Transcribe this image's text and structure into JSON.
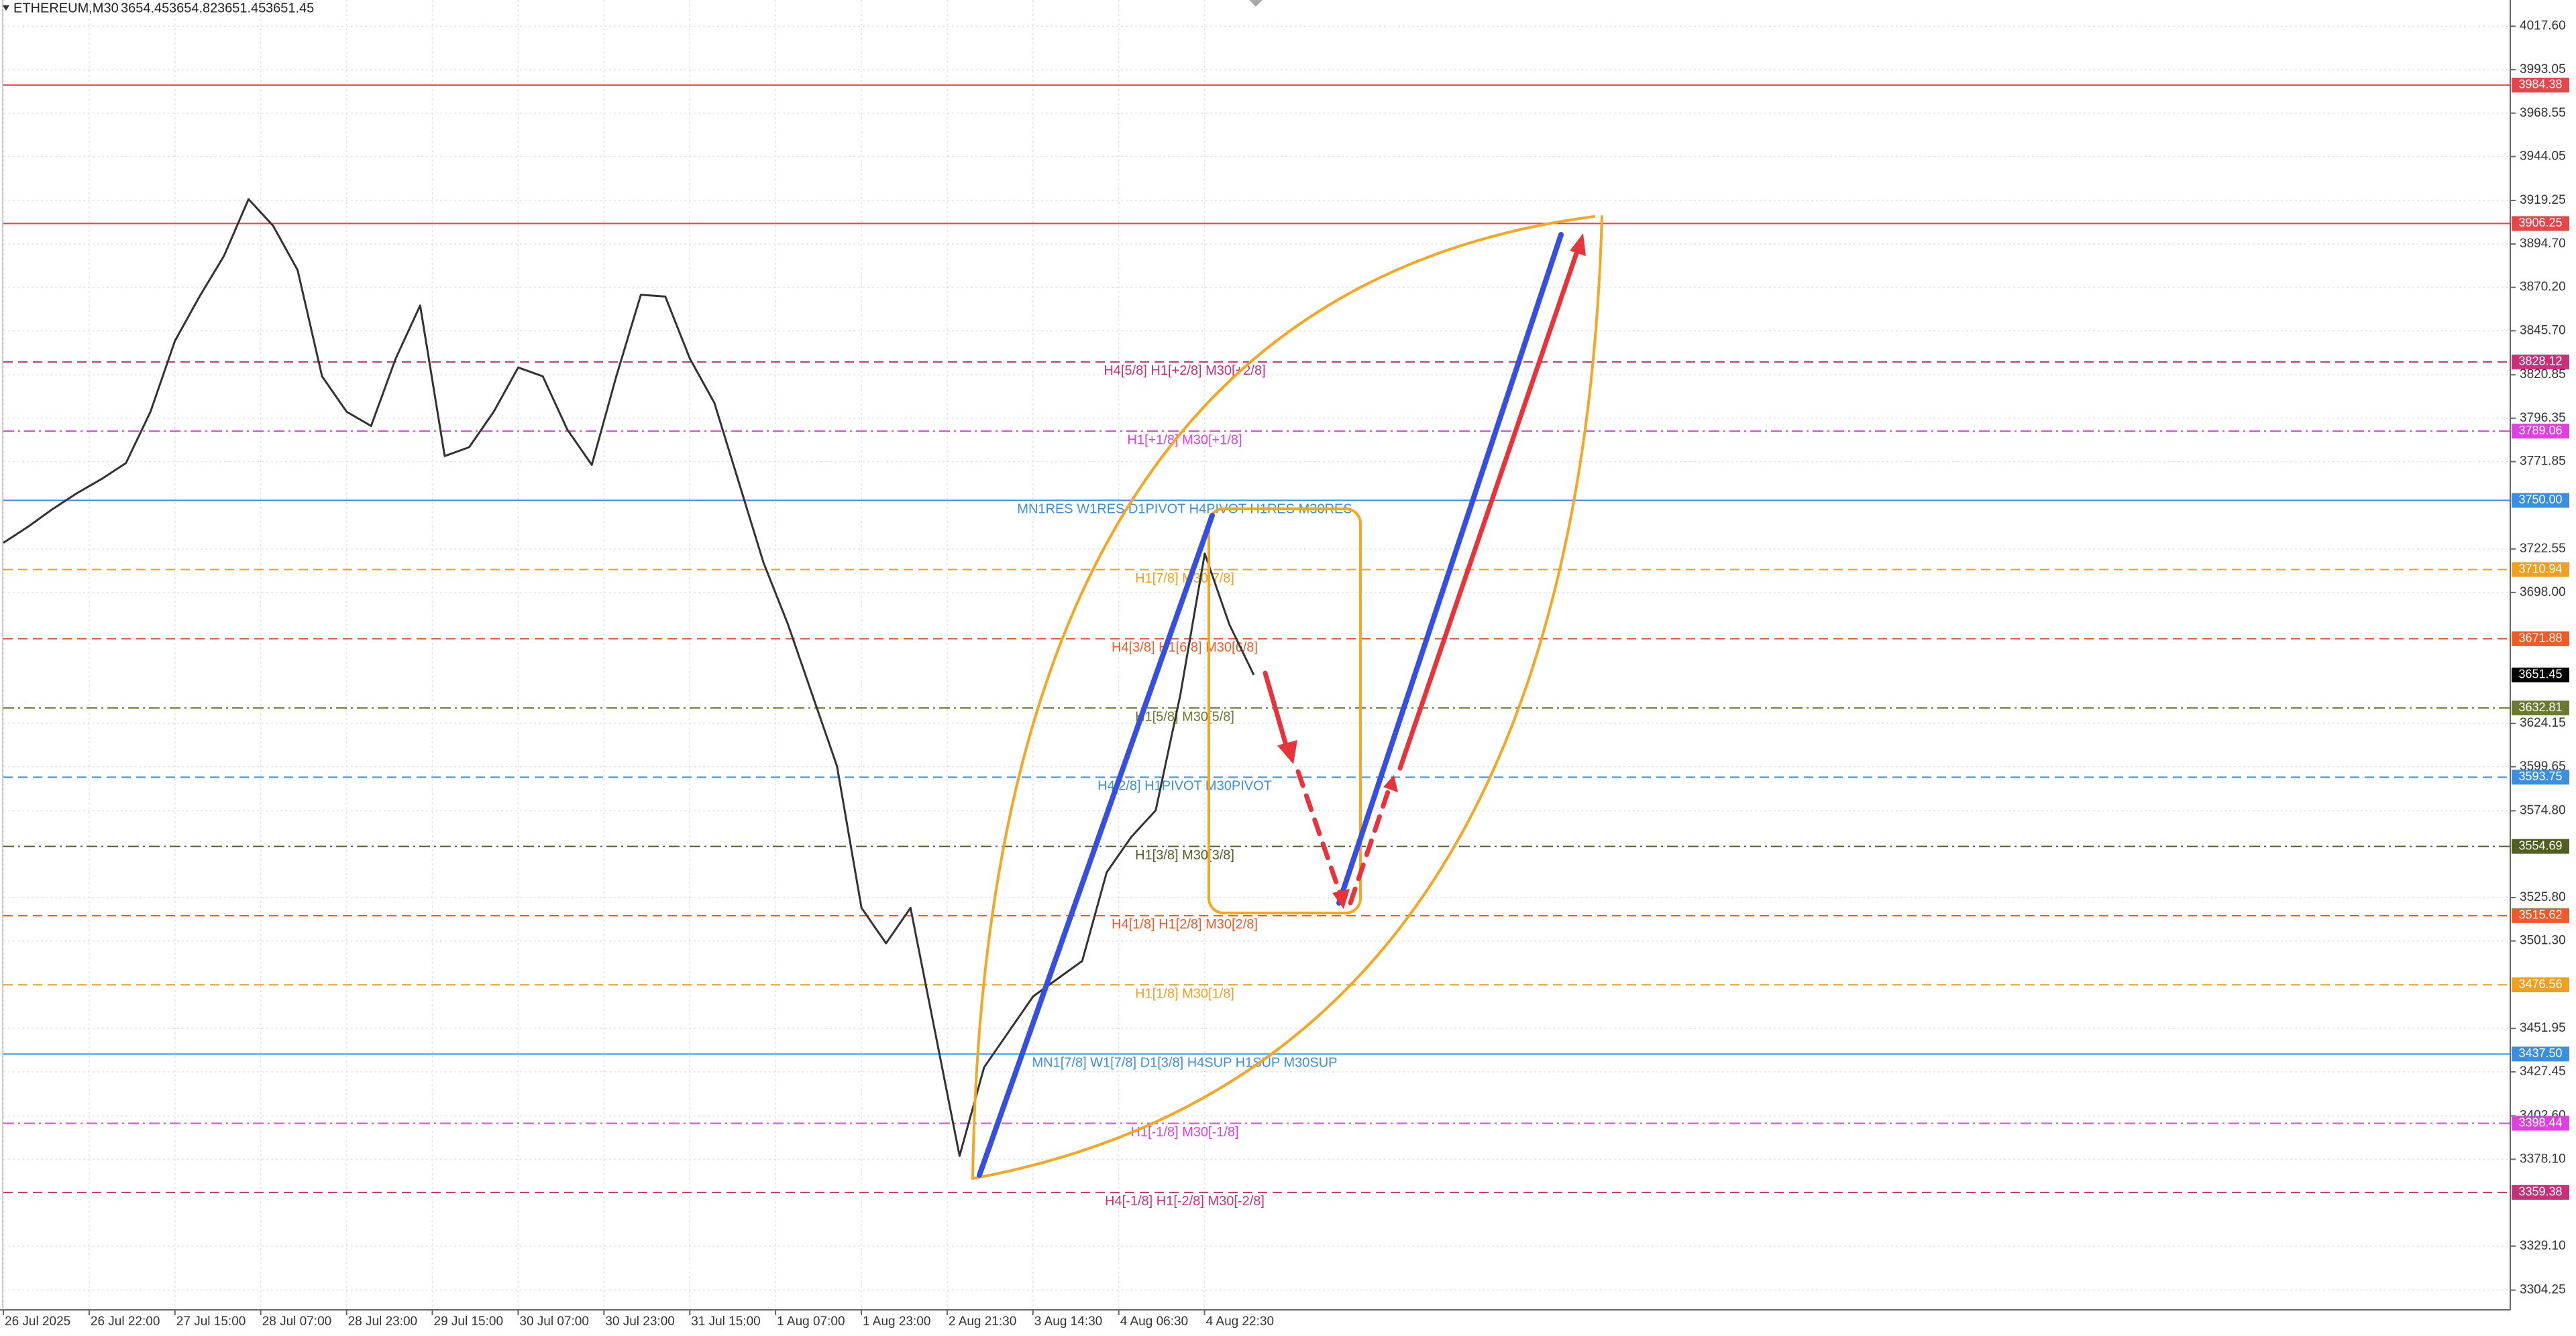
{
  "chart_data": {
    "type": "line",
    "title": "ETHEREUM,M30",
    "ohlc": [
      3654.45,
      3654.82,
      3651.45,
      3651.45
    ],
    "categories": [
      "26 Jul 2025",
      "26 Jul 22:00",
      "27 Jul 15:00",
      "28 Jul 07:00",
      "28 Jul 23:00",
      "29 Jul 15:00",
      "30 Jul 07:00",
      "30 Jul 23:00",
      "31 Jul 15:00",
      "1 Aug 07:00",
      "1 Aug 23:00",
      "2 Aug 21:30",
      "3 Aug 14:30",
      "4 Aug 06:30",
      "4 Aug 22:30"
    ],
    "price": [
      3726,
      3735,
      3745,
      3754,
      3762,
      3771,
      3800,
      3840,
      3865,
      3888,
      3920,
      3905,
      3880,
      3820,
      3800,
      3792,
      3830,
      3860,
      3775,
      3780,
      3800,
      3825,
      3820,
      3790,
      3770,
      3820,
      3866,
      3865,
      3830,
      3805,
      3760,
      3715,
      3680,
      3640,
      3600,
      3520,
      3500,
      3520,
      3450,
      3380,
      3430,
      3450,
      3470,
      3480,
      3490,
      3540,
      3560,
      3575,
      3640,
      3720,
      3680,
      3651.45
    ],
    "color": "#333333",
    "ylim": [
      3293.1,
      4032.4
    ],
    "yticks": [
      {
        "value": 4017.6,
        "label": "4017.60"
      },
      3993.05,
      3968.55,
      3944.05,
      3919.25,
      {
        "value": 3894.7,
        "label": "3894.70"
      },
      {
        "value": 3870.2,
        "label": "3870.20"
      },
      {
        "value": 3845.7,
        "label": "3845.70"
      },
      3820.85,
      3796.35,
      3771.85,
      3722.55,
      {
        "value": 3698,
        "label": "3698.00"
      },
      3624.15,
      3599.65,
      {
        "value": 3574.8,
        "label": "3574.80"
      },
      {
        "value": 3525.8,
        "label": "3525.80"
      },
      {
        "value": 3501.3,
        "label": "3501.30"
      },
      3451.95,
      3427.45,
      {
        "value": 3402.6,
        "label": "3402.60"
      },
      {
        "value": 3378.1,
        "label": "3378.10"
      },
      {
        "value": 3329.1,
        "label": "3329.10"
      },
      3304.25
    ],
    "grid": true,
    "levels": [
      {
        "value": 3984.38,
        "color": "#e8454a",
        "style": "solid"
      },
      {
        "value": 3906.25,
        "color": "#e8454a",
        "style": "solid"
      },
      {
        "value": 3828.12,
        "text": "H4[5/8] H1[+2/8] M30[+2/8]",
        "color": "#c8307a",
        "style": "dash"
      },
      {
        "value": 3789.06,
        "text": "H1[+1/8] M30[+1/8]",
        "color": "#e040e0",
        "style": "dashdot"
      },
      {
        "value": 3750,
        "label": "3750.00",
        "text": "MN1RES W1RES D1PIVOT H4PIVOT H1RES M30RES",
        "color": "#3a8fe0",
        "style": "solid"
      },
      {
        "value": 3710.94,
        "text": "H1[7/8] M30[7/8]",
        "color": "#f0a020",
        "style": "dash"
      },
      {
        "value": 3671.88,
        "text": "H4[3/8] H1[6/8] M30[6/8]",
        "color": "#f05a28",
        "style": "dash"
      },
      {
        "value": 3632.81,
        "text": "H1[5/8] M30[5/8]",
        "color": "#6b7a30",
        "style": "dashdot"
      },
      {
        "value": 3593.75,
        "text": "H4[2/8] H1PIVOT M30PIVOT",
        "color": "#3a90e0",
        "style": "dash"
      },
      {
        "value": 3554.69,
        "text": "H1[3/8] M30[3/8]",
        "color": "#4f5e22",
        "style": "dashdot"
      },
      {
        "value": 3515.62,
        "text": "H4[1/8] H1[2/8] M30[2/8]",
        "color": "#f05a28",
        "style": "dash"
      },
      {
        "value": 3476.56,
        "text": "H1[1/8] M30[1/8]",
        "color": "#f0a020",
        "style": "dash"
      },
      {
        "value": 3437.5,
        "label": "3437.50",
        "text": "MN1[7/8] W1[7/8] D1[3/8] H4SUP H1SUP M30SUP",
        "color": "#3a8fe0",
        "style": "solid"
      },
      {
        "value": 3398.44,
        "text": "H1[-1/8] M30[-1/8]",
        "color": "#e040e0",
        "style": "dashdot"
      },
      {
        "value": 3359.38,
        "text": "H4[-1/8] H1[-2/8] M30[-2/8]",
        "color": "#c8307a",
        "style": "dash"
      }
    ]
  }
}
